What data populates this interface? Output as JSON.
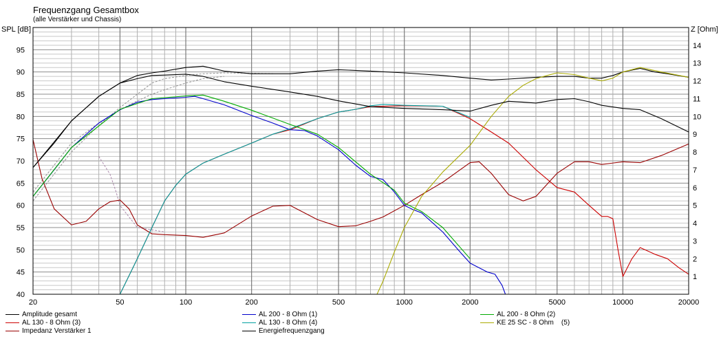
{
  "window": {
    "title": "Frequenzgang Gesamtbox",
    "subtitle": "(alle Verstärker und Chassis)"
  },
  "chart_data": {
    "type": "line",
    "title": "Frequenzgang Gesamtbox",
    "subtitle": "(alle Verstärker und Chassis)",
    "xlabel": "",
    "ylabel": "SPL [dB]",
    "y2label": "Z [Ohm]",
    "xscale": "log",
    "xlim": [
      20,
      20000
    ],
    "ylim": [
      40,
      100
    ],
    "y2lim": [
      0,
      15
    ],
    "grid": true,
    "x_ticks": [
      {
        "value": 20,
        "label": "20"
      },
      {
        "value": 50,
        "label": "50"
      },
      {
        "value": 100,
        "label": "100"
      },
      {
        "value": 200,
        "label": "200"
      },
      {
        "value": 500,
        "label": "500"
      },
      {
        "value": 1000,
        "label": "1000"
      },
      {
        "value": 2000,
        "label": "2000"
      },
      {
        "value": 5000,
        "label": "5000"
      },
      {
        "value": 10000,
        "label": "10000"
      },
      {
        "value": 20000,
        "label": "20000"
      }
    ],
    "y_ticks": [
      {
        "value": 40,
        "label": "40"
      },
      {
        "value": 45,
        "label": "45"
      },
      {
        "value": 50,
        "label": "50"
      },
      {
        "value": 55,
        "label": "55"
      },
      {
        "value": 60,
        "label": "60"
      },
      {
        "value": 65,
        "label": "65"
      },
      {
        "value": 70,
        "label": "70"
      },
      {
        "value": 75,
        "label": "75"
      },
      {
        "value": 80,
        "label": "80"
      },
      {
        "value": 85,
        "label": "85"
      },
      {
        "value": 90,
        "label": "90"
      },
      {
        "value": 95,
        "label": "95"
      }
    ],
    "y2_ticks": [
      {
        "value": 1,
        "label": "1"
      },
      {
        "value": 2,
        "label": "2"
      },
      {
        "value": 3,
        "label": "3"
      },
      {
        "value": 4,
        "label": "4"
      },
      {
        "value": 5,
        "label": "5"
      },
      {
        "value": 6,
        "label": "6"
      },
      {
        "value": 7,
        "label": "7"
      },
      {
        "value": 8,
        "label": "8"
      },
      {
        "value": 9,
        "label": "9"
      },
      {
        "value": 10,
        "label": "10"
      },
      {
        "value": 11,
        "label": "11"
      },
      {
        "value": 12,
        "label": "12"
      },
      {
        "value": 13,
        "label": "13"
      },
      {
        "value": 14,
        "label": "14"
      }
    ],
    "legend_placement": "bottom",
    "series": [
      {
        "name": "Amplitude gesamt",
        "color": "#000000",
        "axis": "left",
        "x": [
          20,
          25,
          30,
          40,
          50,
          60,
          70,
          80,
          100,
          120,
          150,
          200,
          300,
          400,
          500,
          700,
          1000,
          1500,
          2000,
          2500,
          3000,
          4000,
          5000,
          6000,
          7000,
          8000,
          9000,
          10000,
          12000,
          14000,
          16000,
          20000
        ],
        "y": [
          68.5,
          74,
          79,
          84.5,
          87.5,
          89.2,
          89.8,
          90.2,
          91,
          91.3,
          90.2,
          89.6,
          89.6,
          90.2,
          90.5,
          90.2,
          89.8,
          89.2,
          88.6,
          88.2,
          88.4,
          88.8,
          89,
          89,
          88.6,
          88.6,
          89.2,
          90,
          90.8,
          90,
          89.6,
          88.8
        ]
      },
      {
        "name": "AL 130 - 8 Ohm (3)",
        "color": "#cc0000",
        "axis": "left",
        "x": [
          20,
          50,
          60,
          70,
          80,
          90,
          100,
          120,
          150,
          200,
          250,
          300,
          400,
          500,
          600,
          700,
          1000,
          1500,
          2000,
          2500,
          3000,
          4000,
          5000,
          6000,
          7000,
          8000,
          8500,
          9000,
          9500,
          10000,
          11000,
          12000,
          14000,
          16000,
          18000,
          20000
        ],
        "y": [
          40,
          40,
          48,
          55,
          61,
          64.5,
          67,
          69.5,
          71.5,
          74,
          76,
          77,
          79.5,
          81,
          81.6,
          82.2,
          82.4,
          82.3,
          79.5,
          76.5,
          74,
          68,
          64,
          63,
          60,
          57.5,
          57.5,
          57,
          50,
          44,
          48,
          50.5,
          49,
          48,
          46,
          44.5
        ]
      },
      {
        "name": "Impedanz Verstärker 1",
        "color": "#990000",
        "axis": "right",
        "x": [
          20,
          22,
          25,
          30,
          35,
          40,
          45,
          50,
          55,
          60,
          70,
          80,
          100,
          120,
          150,
          200,
          250,
          300,
          400,
          500,
          600,
          700,
          800,
          1000,
          1200,
          1500,
          2000,
          2200,
          2500,
          3000,
          3500,
          4000,
          5000,
          6000,
          7000,
          8000,
          10000,
          12000,
          15000,
          20000
        ],
        "y": [
          8.7,
          6.5,
          4.8,
          3.9,
          4.1,
          4.8,
          5.2,
          5.3,
          4.8,
          3.9,
          3.4,
          3.35,
          3.3,
          3.2,
          3.45,
          4.4,
          4.95,
          5,
          4.2,
          3.8,
          3.85,
          4.1,
          4.35,
          5,
          5.6,
          6.3,
          7.4,
          7.45,
          6.8,
          5.6,
          5.25,
          5.5,
          6.8,
          7.45,
          7.45,
          7.3,
          7.45,
          7.4,
          7.8,
          8.45
        ]
      },
      {
        "name": "AL 200 - 8 Ohm (1)",
        "color": "#0000cc",
        "axis": "left",
        "x": [
          20,
          25,
          30,
          40,
          50,
          60,
          70,
          80,
          100,
          110,
          120,
          150,
          200,
          250,
          300,
          350,
          400,
          500,
          600,
          700,
          800,
          900,
          1000,
          1100,
          1200,
          1500,
          1800,
          2000,
          2400,
          2600,
          2800,
          2900,
          20000
        ],
        "y": [
          62,
          68,
          73,
          78.5,
          81.5,
          83.2,
          83.8,
          84,
          84.3,
          84.5,
          84,
          82.6,
          80.2,
          78.5,
          77,
          76.8,
          75.6,
          72.5,
          69,
          66.5,
          65.8,
          63,
          60,
          59,
          58.3,
          54,
          49.5,
          47,
          45,
          44.5,
          42,
          40,
          40
        ]
      },
      {
        "name": "AL 130 - 8 Ohm (4)",
        "color": "#00a0a0",
        "axis": "left",
        "x": [
          50,
          60,
          70,
          80,
          90,
          100,
          120,
          150,
          200,
          250,
          300,
          400,
          500,
          600,
          700,
          800,
          1000,
          1500,
          2000
        ],
        "y": [
          40,
          48,
          55,
          61,
          64.5,
          67,
          69.5,
          71.5,
          74,
          76,
          77.2,
          79.5,
          81,
          81.6,
          82.4,
          82.7,
          82.5,
          82.3,
          79.8
        ]
      },
      {
        "name": "AL 200 - 8 Ohm (2)",
        "color": "#00aa00",
        "axis": "left",
        "x": [
          20,
          30,
          50,
          70,
          100,
          120,
          150,
          200,
          300,
          400,
          500,
          700,
          900,
          1000,
          1200,
          1500,
          2000
        ],
        "y": [
          62,
          73,
          81.6,
          84,
          84.6,
          84.8,
          83.4,
          81.4,
          78.2,
          76,
          73,
          67,
          63.4,
          60.5,
          58.6,
          55,
          48
        ]
      },
      {
        "name": "KE 25 SC - 8 Ohm    (5)",
        "color": "#aaaa00",
        "axis": "left",
        "x": [
          20,
          750,
          800,
          900,
          1000,
          1200,
          1500,
          2000,
          2500,
          3000,
          3500,
          4000,
          4500,
          5000,
          6000,
          7000,
          8000,
          9000,
          10000,
          12000,
          15000,
          20000
        ],
        "y": [
          40,
          40,
          43,
          49.5,
          55,
          62,
          67.5,
          73.5,
          80,
          84.5,
          87,
          88.5,
          89.2,
          89.8,
          89.4,
          88.6,
          88,
          88.6,
          90,
          91,
          90,
          88.8
        ]
      },
      {
        "name": "Energiefrequenzgang",
        "color": "#000000",
        "axis": "left",
        "x": [
          20,
          30,
          40,
          50,
          60,
          70,
          80,
          100,
          120,
          150,
          200,
          300,
          400,
          500,
          700,
          1000,
          1500,
          2000,
          2500,
          3000,
          3500,
          4000,
          5000,
          6000,
          7000,
          8000,
          10000,
          12000,
          15000,
          20000
        ],
        "y": [
          68.5,
          79,
          84.5,
          87.5,
          88.5,
          89.2,
          89.3,
          89.5,
          89,
          87.8,
          86.8,
          85.5,
          84.5,
          83.5,
          82.2,
          81.8,
          81.5,
          81.2,
          82.5,
          83.4,
          83.2,
          83,
          83.8,
          84,
          83.3,
          82.5,
          81.8,
          81.5,
          79.5,
          76.5
        ]
      }
    ],
    "unlabeled_dashed_series": [
      {
        "color": "#909090",
        "x": [
          20,
          30,
          40,
          50,
          60,
          70,
          80,
          100,
          120,
          150,
          200,
          250
        ],
        "y": [
          61,
          72,
          78,
          82,
          85,
          87.5,
          88.5,
          89.2,
          89.6,
          89.8,
          89.7,
          89.6
        ]
      },
      {
        "color": "#909090",
        "x": [
          20,
          30,
          40,
          50,
          60,
          70,
          80,
          100,
          120,
          150
        ],
        "y": [
          63,
          74,
          78.5,
          81.5,
          83.5,
          85,
          86,
          87.5,
          88.5,
          89
        ]
      },
      {
        "color": "#aa88aa",
        "x": [
          40,
          45,
          48,
          50,
          60,
          70,
          80
        ],
        "y": [
          71,
          67,
          63,
          60,
          55,
          54.5,
          54
        ]
      }
    ]
  },
  "legend": {
    "items": [
      {
        "label": "Amplitude gesamt",
        "color": "#000000"
      },
      {
        "label": "AL 130 - 8 Ohm (3)",
        "color": "#cc0000"
      },
      {
        "label": "Impedanz Verstärker 1",
        "color": "#990000"
      },
      {
        "label": "AL 200 - 8 Ohm (1)",
        "color": "#0000cc"
      },
      {
        "label": "AL 130 - 8 Ohm (4)",
        "color": "#00a0a0"
      },
      {
        "label": "Energiefrequenzgang",
        "color": "#000000"
      },
      {
        "label": "AL 200 - 8 Ohm (2)",
        "color": "#00aa00"
      },
      {
        "label": "KE 25 SC - 8 Ohm    (5)",
        "color": "#aaaa00"
      }
    ]
  }
}
